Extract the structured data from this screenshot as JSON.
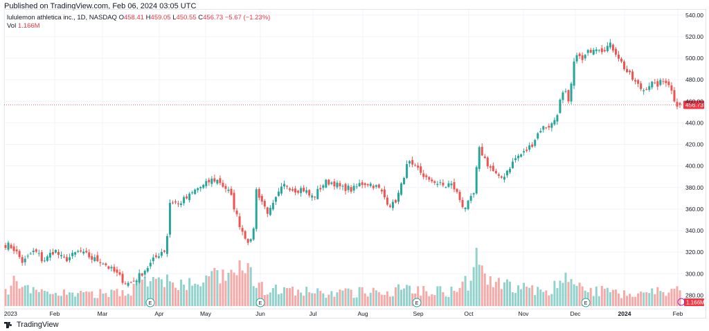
{
  "header": {
    "published": "Published on TradingView.com, Feb 06, 2024 03:05 UTC"
  },
  "legend": {
    "symbol": "lululemon athletica inc., 1D, NASDAQ",
    "o_label": "O",
    "o_value": "458.41",
    "h_label": "H",
    "h_value": "459.05",
    "l_label": "L",
    "l_value": "450.55",
    "c_label": "C",
    "c_value": "456.73",
    "change": "−5.67 (−1.23%)",
    "vol_label": "Vol",
    "vol_value": "1.166M"
  },
  "footer": {
    "brand": "TradingView",
    "logo_icon": "tradingview-logo-icon"
  },
  "colors": {
    "up": "#26a69a",
    "down": "#ef5350",
    "vol_up": "#92d2cc",
    "vol_down": "#f7a9a7",
    "grid": "#f0f3fa",
    "price_line": "#f23645"
  },
  "chart_data": {
    "type": "candlestick",
    "symbol": "lululemon athletica inc.",
    "exchange": "NASDAQ",
    "interval": "1D",
    "ylim": [
      270,
      545
    ],
    "y_ticks": [
      "540.00",
      "520.00",
      "500.00",
      "480.00",
      "460.00",
      "440.00",
      "420.00",
      "400.00",
      "380.00",
      "360.00",
      "340.00",
      "320.00",
      "300.00",
      "280.00"
    ],
    "x_ticks": [
      "2023",
      "Feb",
      "Mar",
      "Apr",
      "May",
      "Jun",
      "Jul",
      "Aug",
      "Sep",
      "Oct",
      "Nov",
      "Dec",
      "2024",
      "Feb"
    ],
    "last_price": "456.73",
    "last_volume": "1.166M",
    "earnings_markers": [
      "E",
      "E",
      "E",
      "E"
    ],
    "grid": true,
    "volume_pane": true,
    "price_path": [
      [
        0,
        327
      ],
      [
        1,
        326
      ],
      [
        2,
        323
      ],
      [
        3,
        318
      ],
      [
        4,
        311
      ],
      [
        5,
        313
      ],
      [
        6,
        318
      ],
      [
        7,
        321
      ],
      [
        8,
        318
      ],
      [
        9,
        312
      ],
      [
        10,
        314
      ],
      [
        11,
        319
      ],
      [
        12,
        322
      ],
      [
        13,
        317
      ],
      [
        14,
        313
      ],
      [
        15,
        314
      ],
      [
        16,
        316
      ],
      [
        17,
        319
      ],
      [
        18,
        321
      ],
      [
        19,
        318
      ],
      [
        20,
        317
      ],
      [
        21,
        314
      ],
      [
        22,
        313
      ],
      [
        23,
        312
      ],
      [
        24,
        310
      ],
      [
        25,
        306
      ],
      [
        26,
        303
      ],
      [
        27,
        300
      ],
      [
        28,
        296
      ],
      [
        29,
        292
      ],
      [
        30,
        291
      ],
      [
        31,
        293
      ],
      [
        32,
        296
      ],
      [
        33,
        300
      ],
      [
        34,
        304
      ],
      [
        35,
        308
      ],
      [
        36,
        313
      ],
      [
        37,
        317
      ],
      [
        38,
        321
      ],
      [
        39,
        322
      ],
      [
        40,
        367
      ],
      [
        41,
        367
      ],
      [
        42,
        364
      ],
      [
        43,
        368
      ],
      [
        44,
        370
      ],
      [
        45,
        373
      ],
      [
        46,
        377
      ],
      [
        47,
        380
      ],
      [
        48,
        381
      ],
      [
        49,
        384
      ],
      [
        50,
        387
      ],
      [
        51,
        387
      ],
      [
        52,
        386
      ],
      [
        53,
        381
      ],
      [
        54,
        378
      ],
      [
        55,
        370
      ],
      [
        56,
        356
      ],
      [
        57,
        345
      ],
      [
        58,
        336
      ],
      [
        59,
        331
      ],
      [
        60,
        328
      ],
      [
        61,
        378
      ],
      [
        62,
        370
      ],
      [
        63,
        362
      ],
      [
        64,
        356
      ],
      [
        65,
        363
      ],
      [
        66,
        371
      ],
      [
        67,
        378
      ],
      [
        68,
        383
      ],
      [
        69,
        381
      ],
      [
        70,
        378
      ],
      [
        71,
        378
      ],
      [
        72,
        379
      ],
      [
        73,
        377
      ],
      [
        74,
        372
      ],
      [
        75,
        371
      ],
      [
        76,
        377
      ],
      [
        77,
        382
      ],
      [
        78,
        385
      ],
      [
        79,
        385
      ],
      [
        80,
        384
      ],
      [
        81,
        381
      ],
      [
        82,
        379
      ],
      [
        83,
        380
      ],
      [
        84,
        378
      ],
      [
        85,
        379
      ],
      [
        86,
        383
      ],
      [
        87,
        384
      ],
      [
        88,
        384
      ],
      [
        89,
        383
      ],
      [
        90,
        381
      ],
      [
        91,
        378
      ],
      [
        92,
        372
      ],
      [
        93,
        366
      ],
      [
        94,
        363
      ],
      [
        95,
        369
      ],
      [
        96,
        378
      ],
      [
        97,
        393
      ],
      [
        98,
        404
      ],
      [
        99,
        398
      ],
      [
        100,
        398
      ],
      [
        101,
        394
      ],
      [
        102,
        390
      ],
      [
        103,
        385
      ],
      [
        104,
        387
      ],
      [
        105,
        384
      ],
      [
        106,
        382
      ],
      [
        107,
        381
      ],
      [
        108,
        384
      ],
      [
        109,
        380
      ],
      [
        110,
        373
      ],
      [
        111,
        364
      ],
      [
        112,
        362
      ],
      [
        113,
        368
      ],
      [
        114,
        375
      ],
      [
        115,
        416
      ],
      [
        116,
        411
      ],
      [
        117,
        403
      ],
      [
        118,
        398
      ],
      [
        119,
        393
      ],
      [
        120,
        388
      ],
      [
        121,
        390
      ],
      [
        122,
        396
      ],
      [
        123,
        401
      ],
      [
        124,
        407
      ],
      [
        125,
        410
      ],
      [
        126,
        412
      ],
      [
        127,
        416
      ],
      [
        128,
        420
      ],
      [
        129,
        427
      ],
      [
        130,
        434
      ],
      [
        131,
        436
      ],
      [
        132,
        437
      ],
      [
        133,
        439
      ],
      [
        134,
        447
      ],
      [
        135,
        462
      ],
      [
        136,
        470
      ],
      [
        137,
        456
      ],
      [
        138,
        490
      ],
      [
        139,
        507
      ],
      [
        140,
        496
      ],
      [
        141,
        502
      ],
      [
        142,
        507
      ],
      [
        143,
        510
      ],
      [
        144,
        511
      ],
      [
        145,
        508
      ],
      [
        146,
        510
      ],
      [
        147,
        512
      ],
      [
        148,
        508
      ],
      [
        149,
        502
      ],
      [
        150,
        494
      ],
      [
        151,
        488
      ],
      [
        152,
        483
      ],
      [
        153,
        478
      ],
      [
        154,
        474
      ],
      [
        155,
        470
      ],
      [
        156,
        474
      ],
      [
        157,
        477
      ],
      [
        158,
        474
      ],
      [
        159,
        477
      ],
      [
        160,
        478
      ],
      [
        161,
        480
      ],
      [
        162,
        469
      ],
      [
        163,
        458
      ],
      [
        164,
        457
      ]
    ],
    "volume_path": [
      [
        0,
        0.34
      ],
      [
        2,
        0.9
      ],
      [
        3,
        0.5
      ],
      [
        8,
        0.35
      ],
      [
        12,
        0.4
      ],
      [
        20,
        0.3
      ],
      [
        30,
        0.45
      ],
      [
        35,
        0.7
      ],
      [
        38,
        0.6
      ],
      [
        40,
        0.9
      ],
      [
        41,
        0.5
      ],
      [
        60,
        1.0
      ],
      [
        61,
        0.5
      ],
      [
        70,
        0.4
      ],
      [
        80,
        0.35
      ],
      [
        96,
        0.45
      ],
      [
        97,
        0.7
      ],
      [
        98,
        0.5
      ],
      [
        110,
        0.4
      ],
      [
        114,
        0.85
      ],
      [
        115,
        2.0
      ],
      [
        116,
        0.7
      ],
      [
        130,
        0.4
      ],
      [
        136,
        0.6
      ],
      [
        137,
        1.1
      ],
      [
        138,
        0.5
      ],
      [
        150,
        0.35
      ],
      [
        163,
        0.45
      ],
      [
        164,
        0.35
      ]
    ]
  }
}
